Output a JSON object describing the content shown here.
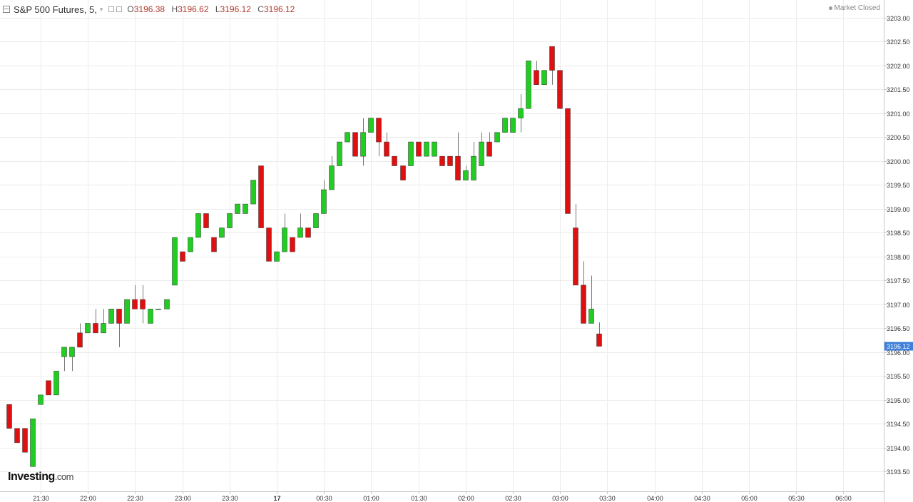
{
  "header": {
    "title": "S&P 500 Futures, 5,",
    "ohlc": [
      {
        "key": "O",
        "value": "3196.38"
      },
      {
        "key": "H",
        "value": "3196.62"
      },
      {
        "key": "L",
        "value": "3196.12"
      },
      {
        "key": "C",
        "value": "3196.12"
      }
    ],
    "status": "Market Closed"
  },
  "logo": {
    "brand": "Investing",
    "suffix": ".com"
  },
  "colors": {
    "up": "#22cc22",
    "down": "#e01010",
    "wick": "#777777",
    "grid": "#ececec",
    "price_tag": "#3d7fd9"
  },
  "chart_data": {
    "type": "candlestick",
    "interval_minutes": 5,
    "ylim": [
      3193.3,
      3203.2
    ],
    "y_ticks": [
      "3193.50",
      "3194.00",
      "3194.50",
      "3195.00",
      "3195.50",
      "3196.00",
      "3196.50",
      "3197.00",
      "3197.50",
      "3198.00",
      "3198.50",
      "3199.00",
      "3199.50",
      "3200.00",
      "3200.50",
      "3201.00",
      "3201.50",
      "3202.00",
      "3202.50",
      "3203.00"
    ],
    "x_ticks": [
      "21:30",
      "22:00",
      "22:30",
      "23:00",
      "23:30",
      "17",
      "00:30",
      "01:00",
      "01:30",
      "02:00",
      "02:30",
      "03:00",
      "03:30",
      "04:00",
      "04:30",
      "05:00",
      "05:30",
      "06:00"
    ],
    "last_price": "3196.12",
    "candles": [
      {
        "o": 3194.9,
        "h": 3194.9,
        "l": 3194.4,
        "c": 3194.4
      },
      {
        "o": 3194.4,
        "h": 3194.4,
        "l": 3194.1,
        "c": 3194.1
      },
      {
        "o": 3194.4,
        "h": 3194.4,
        "l": 3193.9,
        "c": 3193.9
      },
      {
        "o": 3193.6,
        "h": 3194.6,
        "l": 3193.6,
        "c": 3194.6
      },
      {
        "o": 3194.9,
        "h": 3195.1,
        "l": 3194.9,
        "c": 3195.1
      },
      {
        "o": 3195.4,
        "h": 3195.4,
        "l": 3195.1,
        "c": 3195.1
      },
      {
        "o": 3195.1,
        "h": 3195.6,
        "l": 3195.1,
        "c": 3195.6
      },
      {
        "o": 3195.9,
        "h": 3196.1,
        "l": 3195.6,
        "c": 3196.1
      },
      {
        "o": 3195.9,
        "h": 3196.1,
        "l": 3195.6,
        "c": 3196.1
      },
      {
        "o": 3196.4,
        "h": 3196.6,
        "l": 3196.1,
        "c": 3196.1
      },
      {
        "o": 3196.4,
        "h": 3196.6,
        "l": 3196.4,
        "c": 3196.6
      },
      {
        "o": 3196.6,
        "h": 3196.9,
        "l": 3196.4,
        "c": 3196.4
      },
      {
        "o": 3196.4,
        "h": 3196.9,
        "l": 3196.4,
        "c": 3196.6
      },
      {
        "o": 3196.6,
        "h": 3196.9,
        "l": 3196.6,
        "c": 3196.9
      },
      {
        "o": 3196.9,
        "h": 3196.9,
        "l": 3196.1,
        "c": 3196.6
      },
      {
        "o": 3196.6,
        "h": 3197.1,
        "l": 3196.6,
        "c": 3197.1
      },
      {
        "o": 3197.1,
        "h": 3197.4,
        "l": 3196.9,
        "c": 3196.9
      },
      {
        "o": 3197.1,
        "h": 3197.4,
        "l": 3196.6,
        "c": 3196.9
      },
      {
        "o": 3196.6,
        "h": 3196.9,
        "l": 3196.6,
        "c": 3196.9
      },
      {
        "o": 3196.9,
        "h": 3196.9,
        "l": 3196.9,
        "c": 3196.9
      },
      {
        "o": 3196.9,
        "h": 3197.1,
        "l": 3196.9,
        "c": 3197.1
      },
      {
        "o": 3197.4,
        "h": 3198.4,
        "l": 3197.4,
        "c": 3198.4
      },
      {
        "o": 3198.1,
        "h": 3198.1,
        "l": 3197.9,
        "c": 3197.9
      },
      {
        "o": 3198.1,
        "h": 3198.4,
        "l": 3198.1,
        "c": 3198.4
      },
      {
        "o": 3198.4,
        "h": 3198.9,
        "l": 3198.4,
        "c": 3198.9
      },
      {
        "o": 3198.9,
        "h": 3198.9,
        "l": 3198.6,
        "c": 3198.6
      },
      {
        "o": 3198.4,
        "h": 3198.4,
        "l": 3198.1,
        "c": 3198.1
      },
      {
        "o": 3198.4,
        "h": 3198.6,
        "l": 3198.4,
        "c": 3198.6
      },
      {
        "o": 3198.6,
        "h": 3198.9,
        "l": 3198.6,
        "c": 3198.9
      },
      {
        "o": 3198.9,
        "h": 3199.1,
        "l": 3198.9,
        "c": 3199.1
      },
      {
        "o": 3198.9,
        "h": 3199.1,
        "l": 3198.9,
        "c": 3199.1
      },
      {
        "o": 3199.1,
        "h": 3199.6,
        "l": 3199.1,
        "c": 3199.6
      },
      {
        "o": 3199.9,
        "h": 3199.9,
        "l": 3198.6,
        "c": 3198.6
      },
      {
        "o": 3198.6,
        "h": 3198.6,
        "l": 3197.9,
        "c": 3197.9
      },
      {
        "o": 3197.9,
        "h": 3198.1,
        "l": 3197.9,
        "c": 3198.1
      },
      {
        "o": 3198.1,
        "h": 3198.9,
        "l": 3198.1,
        "c": 3198.6
      },
      {
        "o": 3198.4,
        "h": 3198.4,
        "l": 3198.1,
        "c": 3198.1
      },
      {
        "o": 3198.4,
        "h": 3198.9,
        "l": 3198.4,
        "c": 3198.6
      },
      {
        "o": 3198.6,
        "h": 3198.6,
        "l": 3198.4,
        "c": 3198.4
      },
      {
        "o": 3198.6,
        "h": 3198.9,
        "l": 3198.6,
        "c": 3198.9
      },
      {
        "o": 3198.9,
        "h": 3199.6,
        "l": 3198.9,
        "c": 3199.4
      },
      {
        "o": 3199.4,
        "h": 3200.1,
        "l": 3199.4,
        "c": 3199.9
      },
      {
        "o": 3199.9,
        "h": 3200.4,
        "l": 3199.9,
        "c": 3200.4
      },
      {
        "o": 3200.4,
        "h": 3200.6,
        "l": 3200.4,
        "c": 3200.6
      },
      {
        "o": 3200.6,
        "h": 3200.6,
        "l": 3200.1,
        "c": 3200.1
      },
      {
        "o": 3200.1,
        "h": 3200.9,
        "l": 3199.9,
        "c": 3200.6
      },
      {
        "o": 3200.6,
        "h": 3200.9,
        "l": 3200.6,
        "c": 3200.9
      },
      {
        "o": 3200.9,
        "h": 3200.9,
        "l": 3200.1,
        "c": 3200.4
      },
      {
        "o": 3200.4,
        "h": 3200.6,
        "l": 3200.1,
        "c": 3200.1
      },
      {
        "o": 3200.1,
        "h": 3200.1,
        "l": 3199.9,
        "c": 3199.9
      },
      {
        "o": 3199.9,
        "h": 3199.9,
        "l": 3199.6,
        "c": 3199.6
      },
      {
        "o": 3199.9,
        "h": 3200.4,
        "l": 3199.9,
        "c": 3200.4
      },
      {
        "o": 3200.4,
        "h": 3200.4,
        "l": 3200.1,
        "c": 3200.1
      },
      {
        "o": 3200.1,
        "h": 3200.4,
        "l": 3200.1,
        "c": 3200.4
      },
      {
        "o": 3200.1,
        "h": 3200.4,
        "l": 3200.1,
        "c": 3200.4
      },
      {
        "o": 3200.1,
        "h": 3200.1,
        "l": 3199.9,
        "c": 3199.9
      },
      {
        "o": 3200.1,
        "h": 3200.1,
        "l": 3199.9,
        "c": 3199.9
      },
      {
        "o": 3200.1,
        "h": 3200.6,
        "l": 3199.6,
        "c": 3199.6
      },
      {
        "o": 3199.6,
        "h": 3199.9,
        "l": 3199.6,
        "c": 3199.8
      },
      {
        "o": 3199.6,
        "h": 3200.4,
        "l": 3199.6,
        "c": 3200.1
      },
      {
        "o": 3199.9,
        "h": 3200.6,
        "l": 3199.9,
        "c": 3200.4
      },
      {
        "o": 3200.4,
        "h": 3200.6,
        "l": 3200.1,
        "c": 3200.1
      },
      {
        "o": 3200.4,
        "h": 3200.6,
        "l": 3200.4,
        "c": 3200.6
      },
      {
        "o": 3200.6,
        "h": 3200.9,
        "l": 3200.6,
        "c": 3200.9
      },
      {
        "o": 3200.6,
        "h": 3200.9,
        "l": 3200.6,
        "c": 3200.9
      },
      {
        "o": 3200.9,
        "h": 3201.4,
        "l": 3200.6,
        "c": 3201.1
      },
      {
        "o": 3201.1,
        "h": 3202.1,
        "l": 3201.1,
        "c": 3202.1
      },
      {
        "o": 3201.9,
        "h": 3202.1,
        "l": 3201.6,
        "c": 3201.6
      },
      {
        "o": 3201.6,
        "h": 3201.9,
        "l": 3201.6,
        "c": 3201.9
      },
      {
        "o": 3202.4,
        "h": 3202.4,
        "l": 3201.6,
        "c": 3201.9
      },
      {
        "o": 3201.9,
        "h": 3201.9,
        "l": 3201.1,
        "c": 3201.1
      },
      {
        "o": 3201.1,
        "h": 3201.1,
        "l": 3198.9,
        "c": 3198.9
      },
      {
        "o": 3198.6,
        "h": 3199.1,
        "l": 3197.4,
        "c": 3197.4
      },
      {
        "o": 3197.4,
        "h": 3197.9,
        "l": 3196.6,
        "c": 3196.6
      },
      {
        "o": 3196.6,
        "h": 3197.6,
        "l": 3196.6,
        "c": 3196.9
      },
      {
        "o": 3196.38,
        "h": 3196.62,
        "l": 3196.12,
        "c": 3196.12
      }
    ]
  }
}
